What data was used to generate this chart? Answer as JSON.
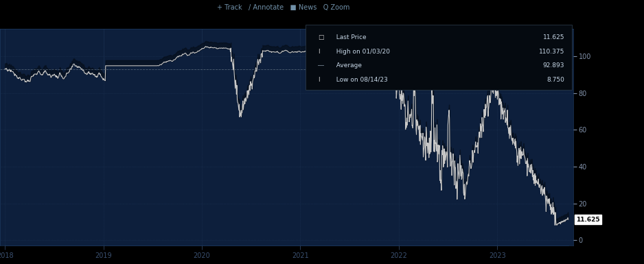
{
  "background_color": "#000000",
  "plot_bg_color": "#0d1f3c",
  "grid_color": "#1e3a5f",
  "line_color": "#c8c8c8",
  "fill_top_color": "#0a0f1a",
  "fill_bot_color": "#0d1f3c",
  "text_color": "#8090a8",
  "yticks": [
    0,
    20,
    40,
    60,
    80,
    100
  ],
  "xticklabels": [
    "2018",
    "2019",
    "2020",
    "2021",
    "2022",
    "2023"
  ],
  "legend_last": 11.625,
  "legend_high_date": "01/03/20",
  "legend_high": 110.375,
  "legend_avg": 92.893,
  "legend_low_date": "08/14/23",
  "legend_low": 8.75,
  "avg_line": 92.893,
  "last_price_label": "11.625",
  "toolbar_text": "⬢ Track  ⁄ Annotate  ■ News  🔍 Zoom",
  "toolbar_text2": "+ Track   / Annotate   News   Zoom"
}
